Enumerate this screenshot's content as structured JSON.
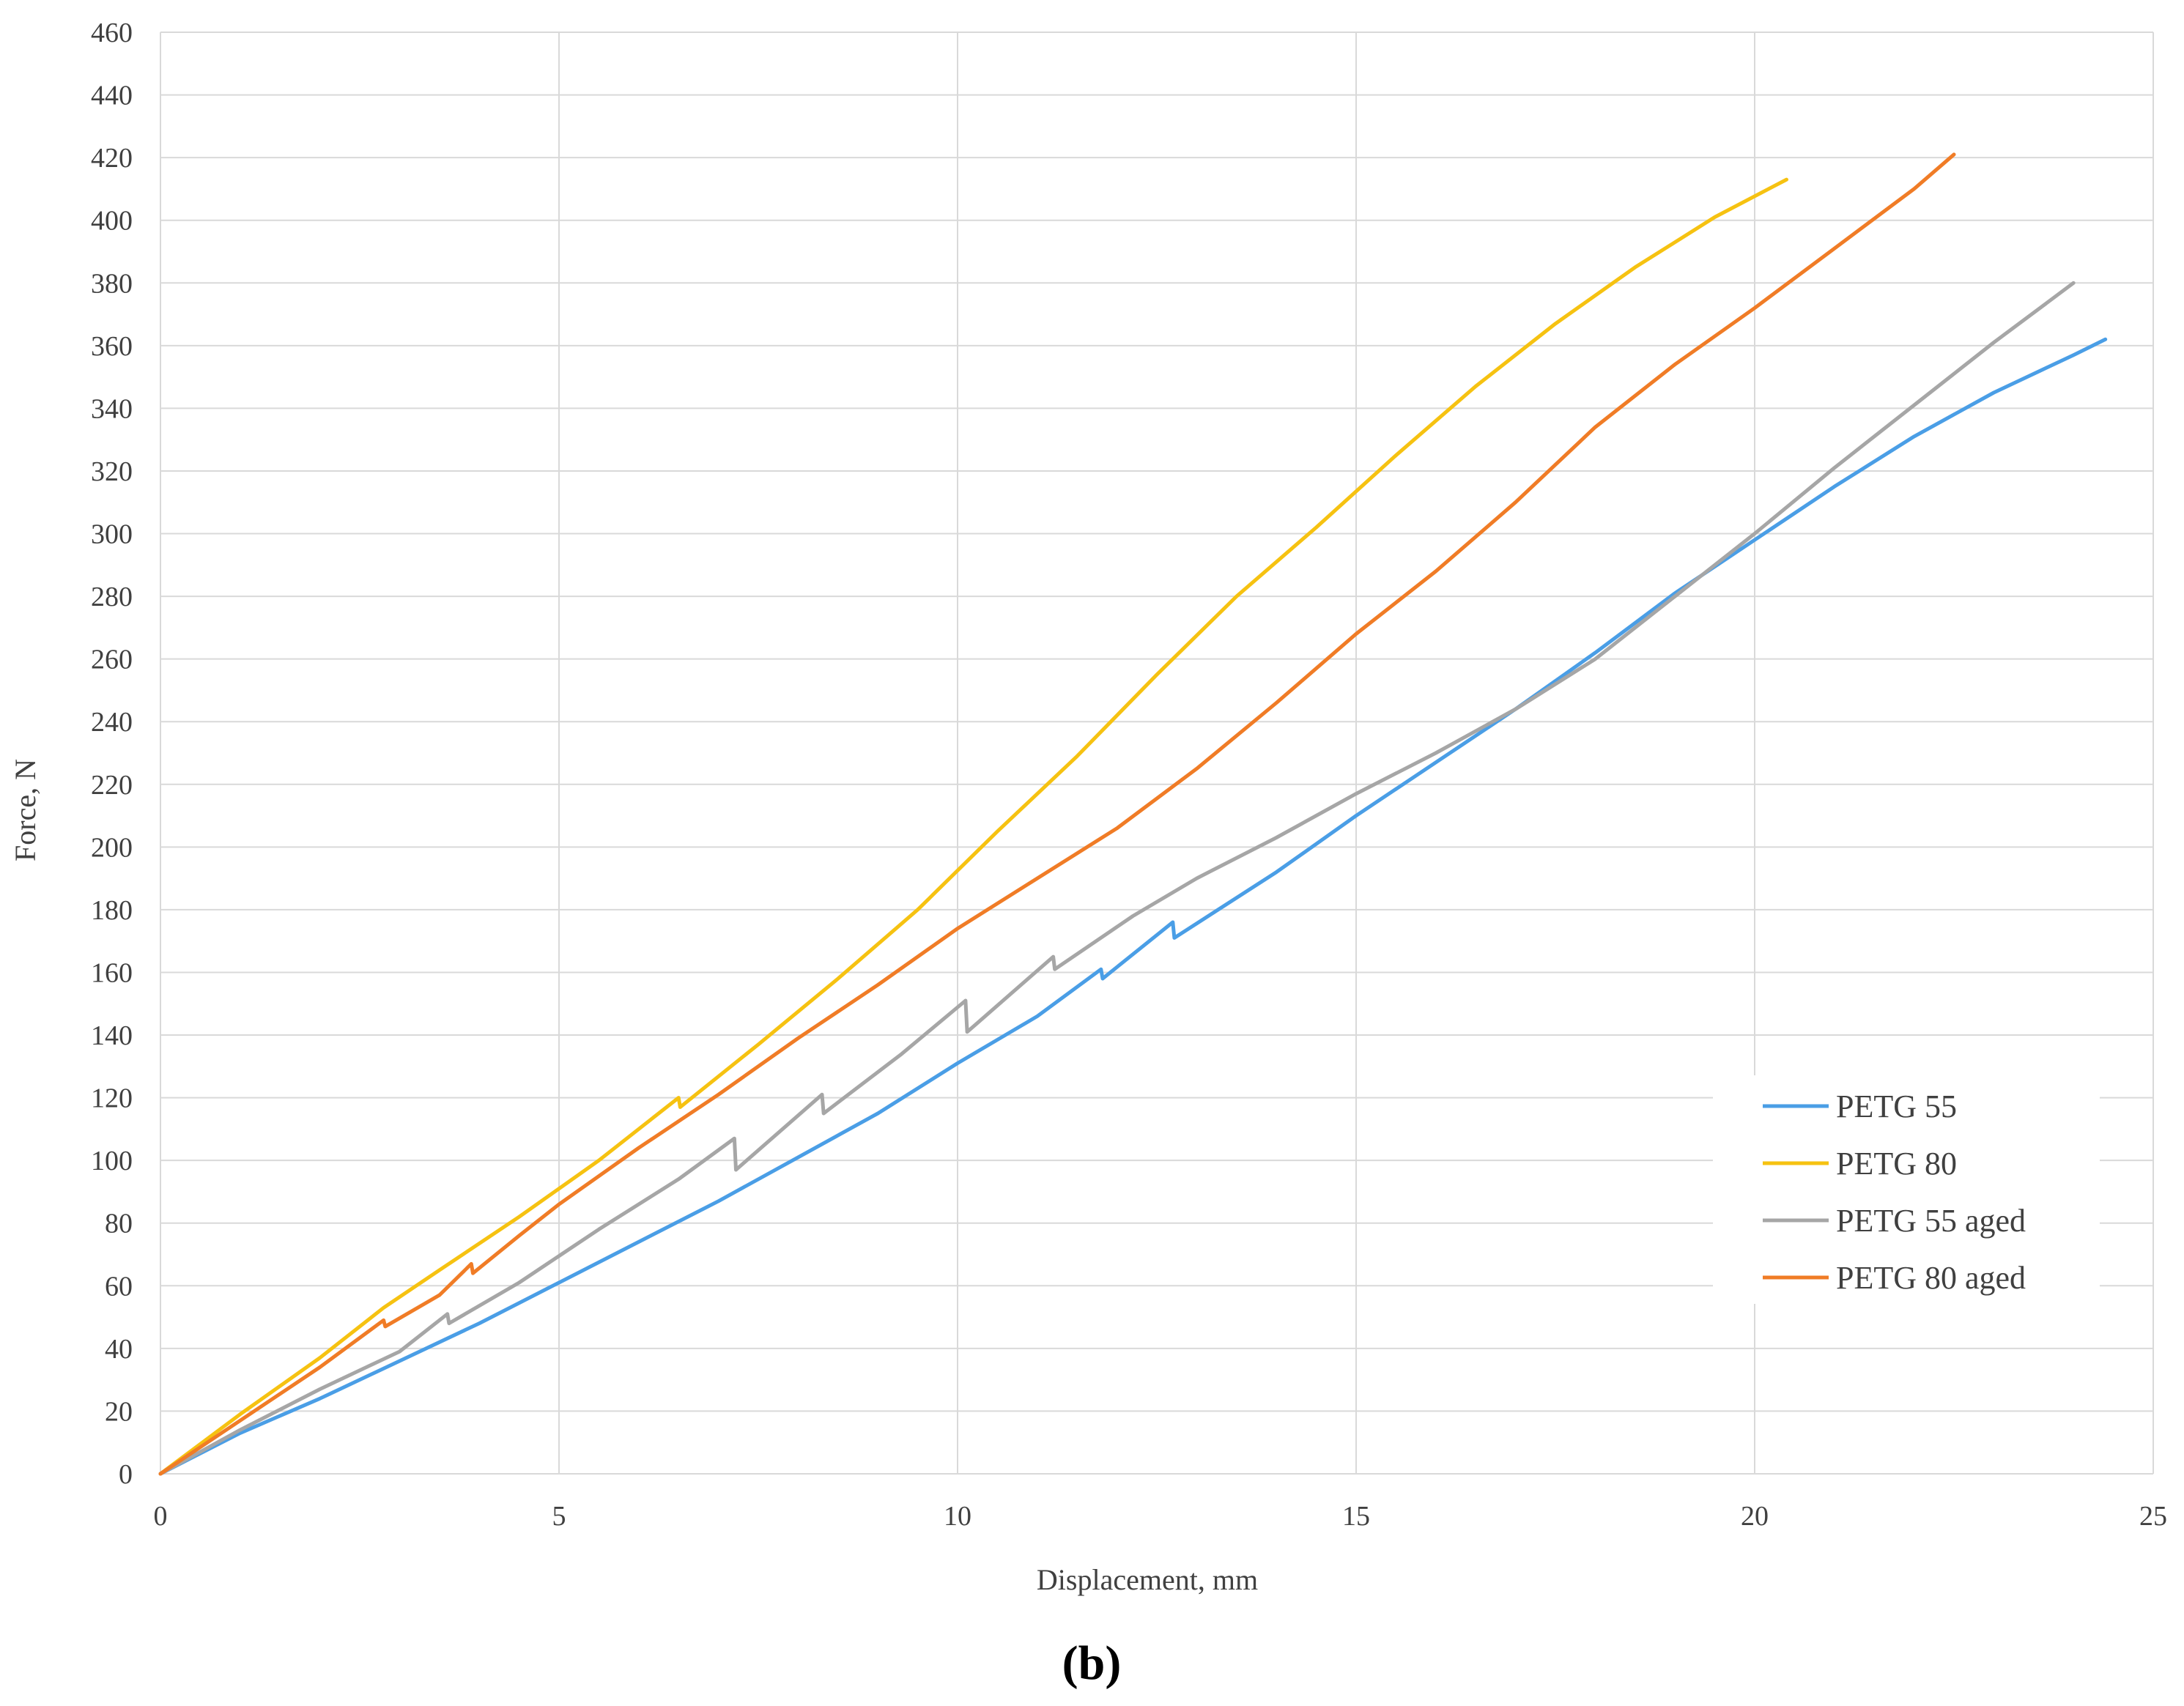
{
  "chart_data": {
    "type": "line",
    "title": "",
    "xlabel": "Displacement,  mm",
    "ylabel": "Force, N",
    "panel_label": "(b)",
    "xlim": [
      0,
      25
    ],
    "ylim": [
      0,
      460
    ],
    "x_ticks": [
      0,
      5,
      10,
      15,
      20,
      25
    ],
    "y_ticks": [
      0,
      20,
      40,
      60,
      80,
      100,
      120,
      140,
      160,
      180,
      200,
      220,
      240,
      260,
      280,
      300,
      320,
      340,
      360,
      380,
      400,
      420,
      440,
      460
    ],
    "grid": true,
    "legend_position": "right",
    "series": [
      {
        "name": "PETG 55",
        "color": "#4a9ee6",
        "points": [
          [
            0,
            0
          ],
          [
            1,
            13
          ],
          [
            2,
            24
          ],
          [
            3,
            36
          ],
          [
            4,
            48
          ],
          [
            5,
            61
          ],
          [
            6,
            74
          ],
          [
            7,
            87
          ],
          [
            8,
            101
          ],
          [
            9,
            115
          ],
          [
            10,
            131
          ],
          [
            11,
            146
          ],
          [
            11.8,
            161
          ],
          [
            11.82,
            158
          ],
          [
            12.7,
            176
          ],
          [
            12.72,
            171
          ],
          [
            14,
            192
          ],
          [
            15,
            210
          ],
          [
            16,
            227
          ],
          [
            17,
            244
          ],
          [
            18,
            262
          ],
          [
            19,
            281
          ],
          [
            20,
            298
          ],
          [
            21,
            315
          ],
          [
            22,
            331
          ],
          [
            23,
            345
          ],
          [
            24,
            357
          ],
          [
            24.4,
            362
          ]
        ]
      },
      {
        "name": "PETG 80",
        "color": "#f6c211",
        "points": [
          [
            0,
            0
          ],
          [
            1,
            19
          ],
          [
            2,
            37
          ],
          [
            2.8,
            53
          ],
          [
            3.5,
            65
          ],
          [
            4.5,
            82
          ],
          [
            5.5,
            100
          ],
          [
            6.5,
            120
          ],
          [
            6.52,
            117
          ],
          [
            7.5,
            137
          ],
          [
            8.5,
            158
          ],
          [
            9.5,
            180
          ],
          [
            10.5,
            205
          ],
          [
            11.5,
            229
          ],
          [
            12.5,
            255
          ],
          [
            13.5,
            280
          ],
          [
            14.5,
            302
          ],
          [
            15.5,
            325
          ],
          [
            16.5,
            347
          ],
          [
            17.5,
            367
          ],
          [
            18.5,
            385
          ],
          [
            19.5,
            401
          ],
          [
            20.4,
            413
          ]
        ]
      },
      {
        "name": "PETG 55 aged",
        "color": "#a6a6a6",
        "points": [
          [
            0,
            0
          ],
          [
            1,
            14
          ],
          [
            2,
            27
          ],
          [
            3,
            39
          ],
          [
            3.6,
            51
          ],
          [
            3.62,
            48
          ],
          [
            4.5,
            61
          ],
          [
            5.5,
            78
          ],
          [
            6.5,
            94
          ],
          [
            7.2,
            107
          ],
          [
            7.22,
            97
          ],
          [
            8.3,
            121
          ],
          [
            8.32,
            115
          ],
          [
            9.3,
            134
          ],
          [
            10.1,
            151
          ],
          [
            10.12,
            141
          ],
          [
            11.2,
            165
          ],
          [
            11.22,
            161
          ],
          [
            12.2,
            178
          ],
          [
            13,
            190
          ],
          [
            14,
            203
          ],
          [
            15,
            217
          ],
          [
            16,
            230
          ],
          [
            17,
            244
          ],
          [
            18,
            260
          ],
          [
            19,
            280
          ],
          [
            20,
            300
          ],
          [
            21,
            321
          ],
          [
            22,
            341
          ],
          [
            23,
            361
          ],
          [
            24,
            380
          ]
        ]
      },
      {
        "name": "PETG 80 aged",
        "color": "#f07c26",
        "points": [
          [
            0,
            0
          ],
          [
            1,
            17
          ],
          [
            2,
            34
          ],
          [
            2.8,
            49
          ],
          [
            2.82,
            47
          ],
          [
            3.5,
            57
          ],
          [
            3.9,
            67
          ],
          [
            3.92,
            64
          ],
          [
            4.5,
            76
          ],
          [
            5,
            86
          ],
          [
            6,
            104
          ],
          [
            7,
            121
          ],
          [
            8,
            139
          ],
          [
            9,
            156
          ],
          [
            10,
            174
          ],
          [
            11,
            190
          ],
          [
            12,
            206
          ],
          [
            13,
            225
          ],
          [
            14,
            246
          ],
          [
            15,
            268
          ],
          [
            16,
            288
          ],
          [
            17,
            310
          ],
          [
            18,
            334
          ],
          [
            19,
            354
          ],
          [
            20,
            372
          ],
          [
            21,
            391
          ],
          [
            22,
            410
          ],
          [
            22.5,
            421
          ]
        ]
      }
    ]
  }
}
